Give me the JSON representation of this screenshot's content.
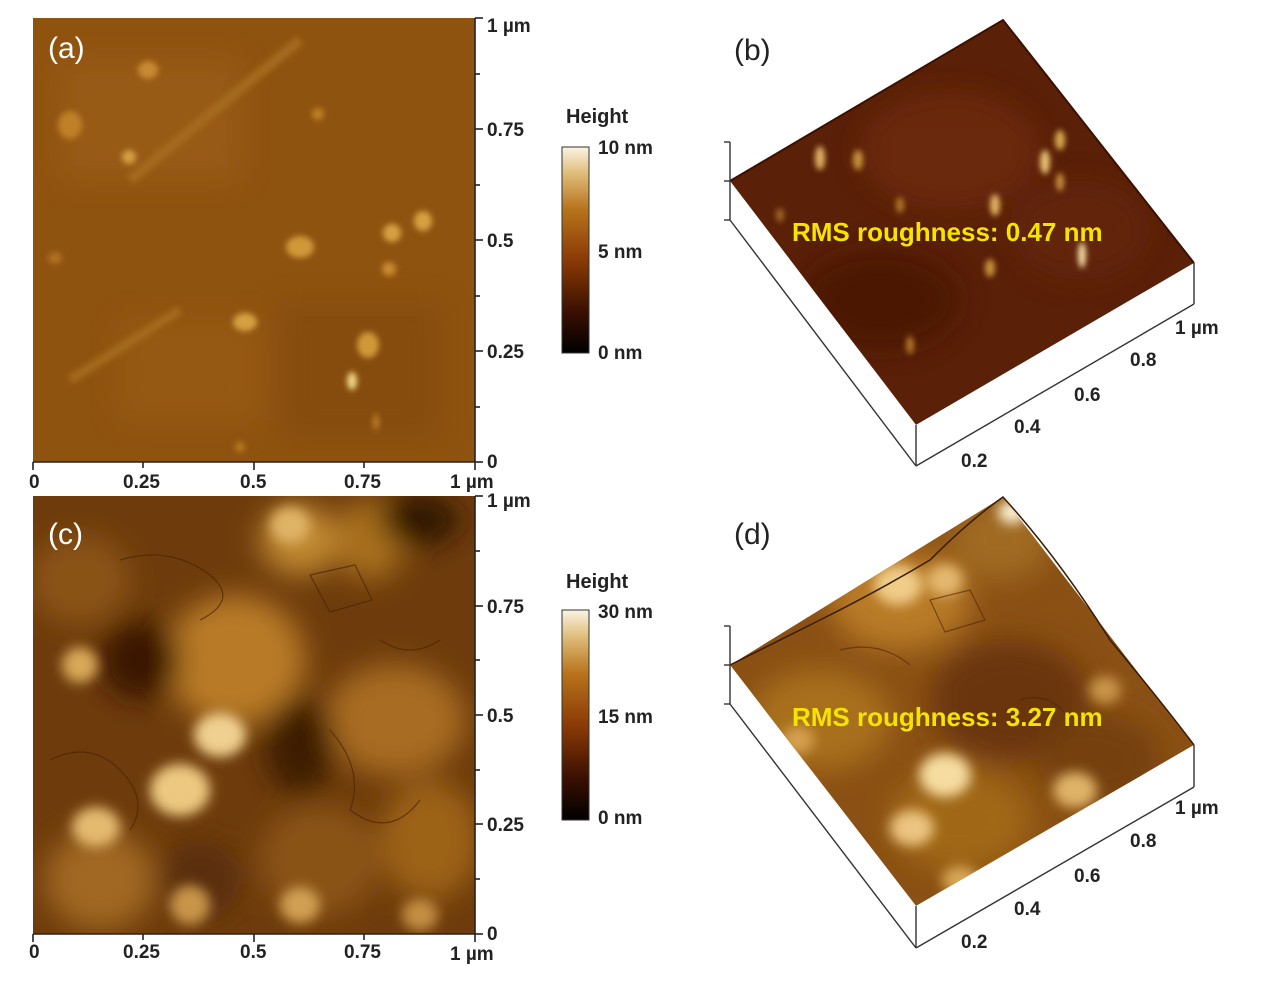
{
  "panels": {
    "a": {
      "label": "(a)",
      "x_ticks": [
        "0",
        "0.25",
        "0.5",
        "0.75",
        "1 µm"
      ],
      "y_ticks": [
        "1 µm",
        "0.75",
        "0.5",
        "0.25",
        "0"
      ],
      "colorbar": {
        "title": "Height",
        "max": "10 nm",
        "mid": "5 nm",
        "min": "0 nm"
      }
    },
    "b": {
      "label": "(b)",
      "rms": "RMS roughness: 0.47 nm",
      "axis_ticks": [
        "1 µm",
        "0.8",
        "0.6",
        "0.4",
        "0.2"
      ]
    },
    "c": {
      "label": "(c)",
      "x_ticks": [
        "0",
        "0.25",
        "0.5",
        "0.75",
        "1 µm"
      ],
      "y_ticks": [
        "1 µm",
        "0.75",
        "0.5",
        "0.25",
        "0"
      ],
      "colorbar": {
        "title": "Height",
        "max": "30 nm",
        "mid": "15 nm",
        "min": "0 nm"
      }
    },
    "d": {
      "label": "(d)",
      "rms": "RMS roughness: 3.27 nm",
      "axis_ticks": [
        "1 µm",
        "0.8",
        "0.6",
        "0.4",
        "0.2"
      ]
    }
  },
  "colors": {
    "colormap": [
      "#000000",
      "#3a1000",
      "#8a3a06",
      "#b8741c",
      "#e0c080",
      "#fbf4e4"
    ],
    "rms_text": "#f5e400"
  }
}
